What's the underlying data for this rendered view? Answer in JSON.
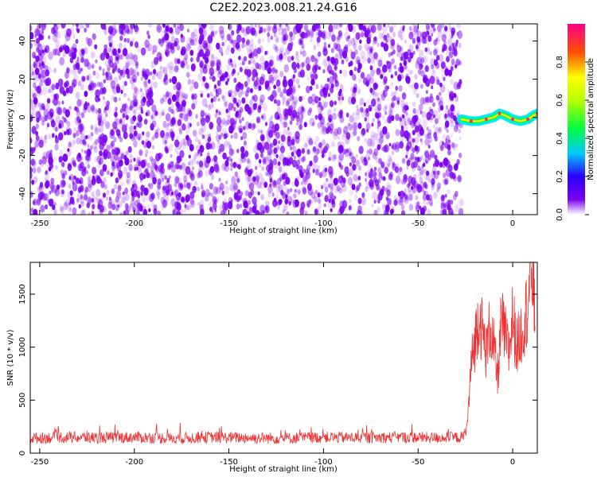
{
  "figure_title": "C2E2.2023.008.21.24.G16",
  "chart_data": [
    {
      "type": "heatmap",
      "title": "",
      "xlabel": "Height of straight line (km)",
      "ylabel": "Frequency (Hz)",
      "xlim": [
        -255,
        13
      ],
      "ylim": [
        -51,
        49
      ],
      "x_ticks": [
        -250,
        -200,
        -150,
        -100,
        -50,
        0
      ],
      "y_ticks": [
        -40,
        -20,
        0,
        20,
        40
      ],
      "grid": false,
      "colormap": "rainbow (violet low to magenta high)",
      "noise_region": {
        "x_range": [
          -255,
          -27
        ],
        "y_range": [
          -51,
          49
        ],
        "amplitude_range": [
          0.0,
          0.1
        ],
        "color": "#7b00f0"
      },
      "signal_track": {
        "description": "high-amplitude narrow band near 0 Hz",
        "x": [
          -27,
          -22,
          -18,
          -14,
          -10,
          -7,
          -4,
          0,
          4,
          8,
          11,
          13
        ],
        "frequency": [
          -1,
          -2,
          -2,
          -1,
          0,
          2,
          1,
          -1,
          -2,
          -1,
          1,
          2
        ],
        "peak_amplitude": 0.95
      },
      "colorbar": {
        "label": "Normalized spectral amplitude",
        "range": [
          0,
          1
        ],
        "ticks": [
          0.0,
          0.2,
          0.4,
          0.6,
          0.8
        ],
        "tick_labels": [
          "0.0",
          "0.2",
          "0.4",
          "0.6",
          "0.8"
        ]
      }
    },
    {
      "type": "line",
      "title": "",
      "xlabel": "Height of straight line (km)",
      "ylabel": "SNR (10 * v/v)",
      "xlim": [
        -255,
        13
      ],
      "ylim": [
        0,
        1800
      ],
      "x_ticks": [
        -250,
        -200,
        -150,
        -100,
        -50,
        0
      ],
      "y_ticks": [
        0,
        500,
        1000,
        1500
      ],
      "grid": false,
      "color": "#ee3333",
      "series": [
        {
          "x": [
            -255,
            -240,
            -220,
            -200,
            -180,
            -160,
            -140,
            -120,
            -100,
            -80,
            -60,
            -40,
            -26,
            -24,
            -22,
            -20,
            -18,
            -16,
            -14,
            -12,
            -10,
            -8,
            -6,
            -4,
            -2,
            0,
            2,
            4,
            6,
            8,
            10,
            12
          ],
          "y": [
            140,
            150,
            145,
            150,
            140,
            150,
            145,
            140,
            150,
            145,
            150,
            145,
            150,
            260,
            820,
            1050,
            1300,
            1150,
            950,
            1200,
            1000,
            700,
            1250,
            1100,
            950,
            1300,
            1000,
            1100,
            1250,
            1400,
            1800,
            1250
          ]
        }
      ]
    }
  ]
}
